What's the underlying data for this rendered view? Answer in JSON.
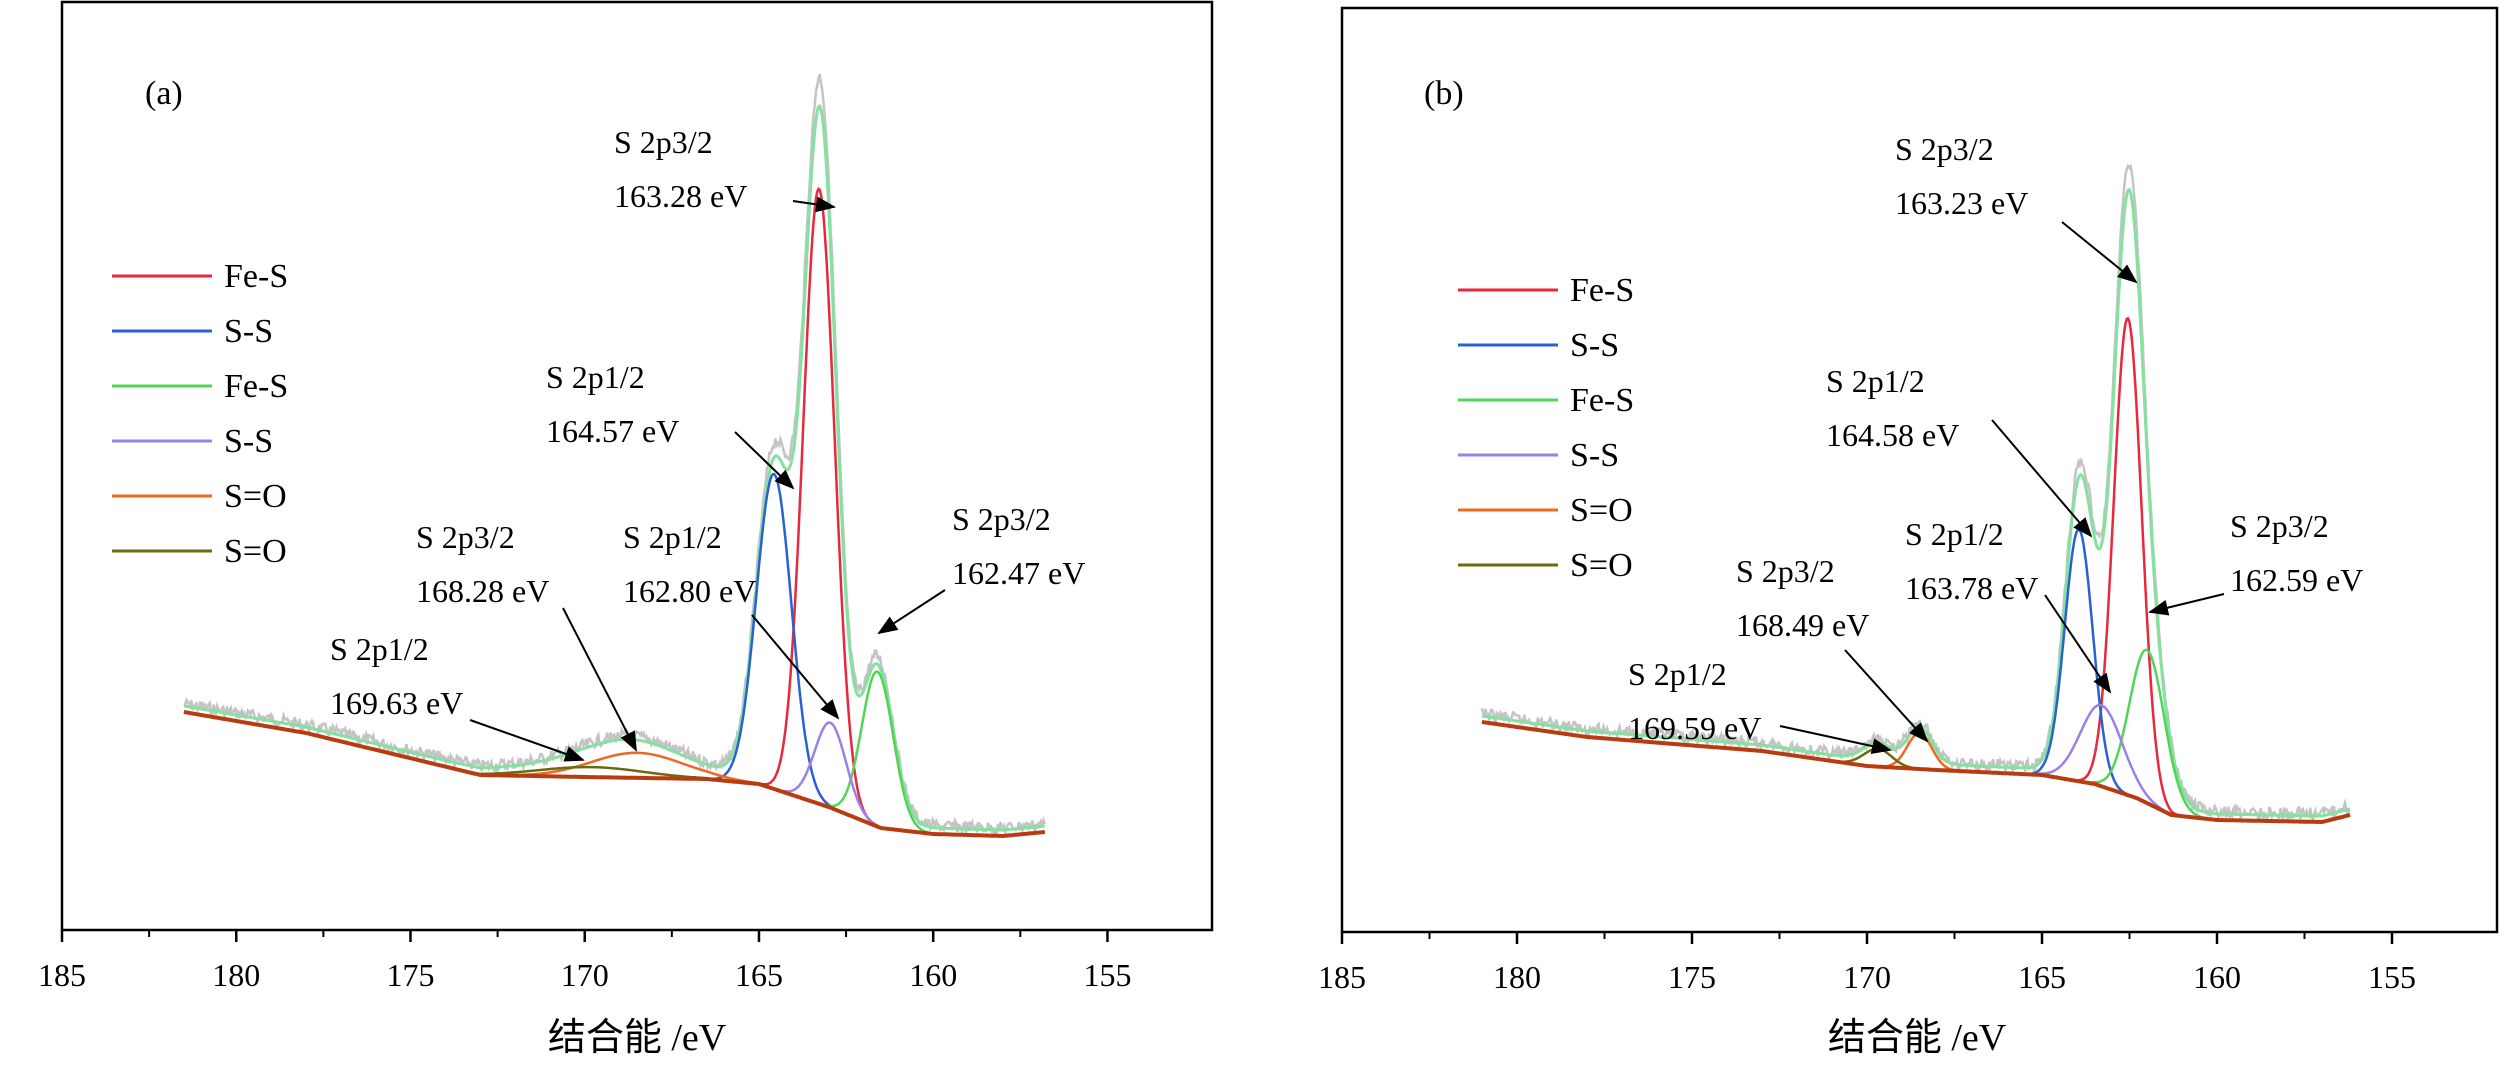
{
  "chart_data": [
    {
      "panel_label": "(a)",
      "type": "line",
      "xlabel": "结合能 /eV",
      "xlim": [
        185,
        152
      ],
      "x_reversed": true,
      "xticks": [
        185,
        180,
        175,
        170,
        165,
        160,
        155
      ],
      "legend_position": "middle-left",
      "legend": [
        {
          "label": "Fe-S",
          "color": "#e8283c"
        },
        {
          "label": "S-S",
          "color": "#2a60d6"
        },
        {
          "label": "Fe-S",
          "color": "#52d458"
        },
        {
          "label": "S-S",
          "color": "#9c80e8"
        },
        {
          "label": "S=O",
          "color": "#f06820"
        },
        {
          "label": "S=O",
          "color": "#6b6b10"
        }
      ],
      "series": [
        {
          "color": "#e8283c",
          "center": 163.28,
          "width": 0.45,
          "height": 0.615
        },
        {
          "color": "#2a60d6",
          "center": 164.57,
          "width": 0.5,
          "height": 0.315
        },
        {
          "color": "#52d458",
          "center": 161.6,
          "width": 0.45,
          "height": 0.155
        },
        {
          "color": "#9c80e8",
          "center": 162.95,
          "width": 0.45,
          "height": 0.085
        },
        {
          "color": "#f06820",
          "center": 168.5,
          "width": 1.3,
          "height": 0.025
        },
        {
          "color": "#6b6b10",
          "center": 169.8,
          "width": 1.5,
          "height": 0.01
        }
      ],
      "annotations": [
        {
          "line1": "S 2p3/2",
          "line2": "163.28 eV"
        },
        {
          "line1": "S 2p1/2",
          "line2": "164.57 eV"
        },
        {
          "line1": "S 2p3/2",
          "line2": "168.28 eV"
        },
        {
          "line1": "S 2p1/2",
          "line2": "162.80 eV"
        },
        {
          "line1": "S 2p3/2",
          "line2": "162.47 eV"
        },
        {
          "line1": "S 2p1/2",
          "line2": "169.63 eV"
        }
      ]
    },
    {
      "panel_label": "(b)",
      "type": "line",
      "xlabel": "结合能 /eV",
      "xlim": [
        185,
        152
      ],
      "x_reversed": true,
      "xticks": [
        185,
        180,
        175,
        170,
        165,
        160,
        155
      ],
      "legend_position": "middle-left",
      "legend": [
        {
          "label": "Fe-S",
          "color": "#e8283c"
        },
        {
          "label": "S-S",
          "color": "#2a60d6"
        },
        {
          "label": "Fe-S",
          "color": "#52d458"
        },
        {
          "label": "S-S",
          "color": "#9c80e8"
        },
        {
          "label": "S=O",
          "color": "#f06820"
        },
        {
          "label": "S=O",
          "color": "#6b6b10"
        }
      ],
      "series": [
        {
          "color": "#e8283c",
          "center": 162.55,
          "width": 0.4,
          "height": 0.53
        },
        {
          "color": "#2a60d6",
          "center": 163.95,
          "width": 0.4,
          "height": 0.28
        },
        {
          "color": "#52d458",
          "center": 162.0,
          "width": 0.5,
          "height": 0.17
        },
        {
          "color": "#9c80e8",
          "center": 163.3,
          "width": 0.6,
          "height": 0.09
        },
        {
          "color": "#f06820",
          "center": 168.5,
          "width": 0.35,
          "height": 0.04
        },
        {
          "color": "#6b6b10",
          "center": 169.7,
          "width": 0.4,
          "height": 0.02
        }
      ],
      "annotations": [
        {
          "line1": "S 2p3/2",
          "line2": "163.23 eV"
        },
        {
          "line1": "S 2p1/2",
          "line2": "164.58 eV"
        },
        {
          "line1": "S 2p1/2",
          "line2": "163.78 eV"
        },
        {
          "line1": "S 2p3/2",
          "line2": "162.59 eV"
        },
        {
          "line1": "S 2p3/2",
          "line2": "168.49 eV"
        },
        {
          "line1": "S 2p1/2",
          "line2": "169.59 eV"
        }
      ]
    }
  ]
}
